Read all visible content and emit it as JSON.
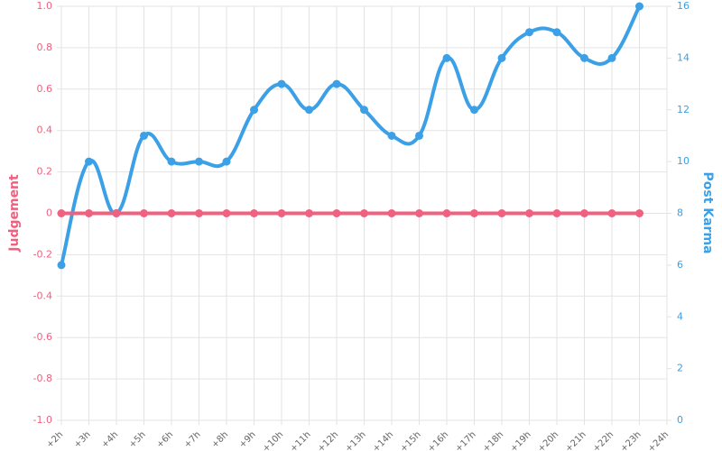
{
  "chart_data": {
    "type": "line",
    "categories": [
      "+2h",
      "+3h",
      "+4h",
      "+5h",
      "+6h",
      "+7h",
      "+8h",
      "+9h",
      "+10h",
      "+11h",
      "+12h",
      "+13h",
      "+14h",
      "+15h",
      "+16h",
      "+17h",
      "+18h",
      "+19h",
      "+20h",
      "+21h",
      "+22h",
      "+23h",
      "+24h"
    ],
    "series": [
      {
        "name": "Judgement",
        "color": "#f0607f",
        "values": [
          0,
          0,
          0,
          0,
          0,
          0,
          0,
          0,
          0,
          0,
          0,
          0,
          0,
          0,
          0,
          0,
          0,
          0,
          0,
          0,
          0,
          0,
          null
        ]
      },
      {
        "name": "Post Karma",
        "color": "#3ba0e6",
        "axis": "y2",
        "values": [
          6,
          10,
          8,
          11,
          10,
          10,
          10,
          12,
          13,
          12,
          13,
          12,
          11,
          11,
          14,
          12,
          14,
          15,
          15,
          14,
          14,
          16,
          null
        ]
      }
    ],
    "ylabel": "Judgement",
    "y2label": "Post Karma",
    "ylim": [
      -1,
      1
    ],
    "yticks": [
      {
        "value": -1,
        "label": "-1.0"
      },
      -0.8,
      -0.6,
      -0.4,
      -0.2,
      0,
      0.2,
      0.4,
      0.6,
      0.8,
      {
        "value": 1,
        "label": "1.0"
      }
    ],
    "y2lim": [
      0,
      16
    ],
    "y2ticks": [
      0,
      2,
      4,
      6,
      8,
      10,
      12,
      14,
      16
    ],
    "grid": true
  }
}
